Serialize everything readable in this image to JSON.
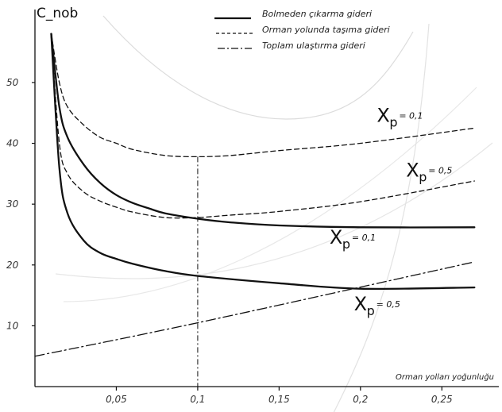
{
  "chart_data": {
    "type": "line",
    "title": "",
    "ylabel": "C_nob",
    "xlabel": "Orman yolları yoğunluğu",
    "xlim": [
      0.0,
      0.285
    ],
    "ylim": [
      0,
      62
    ],
    "x_ticks": [
      "0,05",
      "0,1",
      "0,15",
      "0,2",
      "0,25"
    ],
    "x_tick_values": [
      0.05,
      0.1,
      0.15,
      0.2,
      0.25
    ],
    "y_ticks": [
      "10",
      "20",
      "30",
      "40",
      "50"
    ],
    "y_tick_values": [
      10,
      20,
      30,
      40,
      50
    ],
    "legend": {
      "position": "top-right",
      "entries": [
        {
          "label": "Bolmeden çıkarma gideri",
          "style": "solid"
        },
        {
          "label": "Orman yolunda taşıma gideri",
          "style": "dashed"
        },
        {
          "label": "Toplam ulaştırma gideri",
          "style": "dashdot"
        }
      ]
    },
    "series": [
      {
        "style": "solid",
        "points": [
          [
            0.01,
            58
          ],
          [
            0.015,
            46
          ],
          [
            0.02,
            41
          ],
          [
            0.03,
            36.5
          ],
          [
            0.04,
            33.5
          ],
          [
            0.05,
            31.5
          ],
          [
            0.06,
            30.2
          ],
          [
            0.07,
            29.3
          ],
          [
            0.08,
            28.5
          ],
          [
            0.1,
            27.6
          ],
          [
            0.12,
            27
          ],
          [
            0.15,
            26.5
          ],
          [
            0.2,
            26.2
          ],
          [
            0.27,
            26.2
          ]
        ]
      },
      {
        "style": "solid",
        "points": [
          [
            0.01,
            58
          ],
          [
            0.015,
            36
          ],
          [
            0.02,
            28.5
          ],
          [
            0.03,
            24
          ],
          [
            0.04,
            22
          ],
          [
            0.05,
            21
          ],
          [
            0.06,
            20.2
          ],
          [
            0.08,
            19
          ],
          [
            0.1,
            18.2
          ],
          [
            0.15,
            17
          ],
          [
            0.2,
            16.1
          ],
          [
            0.27,
            16.3
          ]
        ]
      },
      {
        "style": "dashed",
        "points": [
          [
            0.01,
            58
          ],
          [
            0.015,
            50
          ],
          [
            0.02,
            46
          ],
          [
            0.03,
            43
          ],
          [
            0.04,
            41
          ],
          [
            0.05,
            40
          ],
          [
            0.06,
            39
          ],
          [
            0.08,
            38
          ],
          [
            0.1,
            37.8
          ],
          [
            0.12,
            38
          ],
          [
            0.15,
            38.8
          ],
          [
            0.2,
            40
          ],
          [
            0.27,
            42.5
          ]
        ]
      },
      {
        "style": "dashed",
        "points": [
          [
            0.01,
            58
          ],
          [
            0.015,
            40
          ],
          [
            0.02,
            35
          ],
          [
            0.03,
            32
          ],
          [
            0.04,
            30.5
          ],
          [
            0.05,
            29.5
          ],
          [
            0.06,
            28.7
          ],
          [
            0.08,
            27.8
          ],
          [
            0.1,
            27.8
          ],
          [
            0.12,
            28.2
          ],
          [
            0.15,
            28.8
          ],
          [
            0.2,
            30.4
          ],
          [
            0.27,
            33.8
          ]
        ]
      },
      {
        "style": "dashdot",
        "points": [
          [
            0.0,
            5
          ],
          [
            0.1,
            10.5
          ],
          [
            0.27,
            20.5
          ]
        ]
      }
    ],
    "annotations": [
      {
        "base": "X",
        "sub": "p",
        "value": "= 0,1",
        "x": 0.21,
        "y": 43.5
      },
      {
        "base": "X",
        "sub": "p",
        "value": "= 0,5",
        "x": 0.228,
        "y": 34.5
      },
      {
        "base": "X",
        "sub": "p",
        "value": "= 0,1",
        "x": 0.181,
        "y": 23.5
      },
      {
        "base": "X",
        "sub": "p",
        "value": "= 0,5",
        "x": 0.196,
        "y": 12.5
      }
    ],
    "reference_line": {
      "x": 0.1,
      "y_top": 37.8
    }
  }
}
